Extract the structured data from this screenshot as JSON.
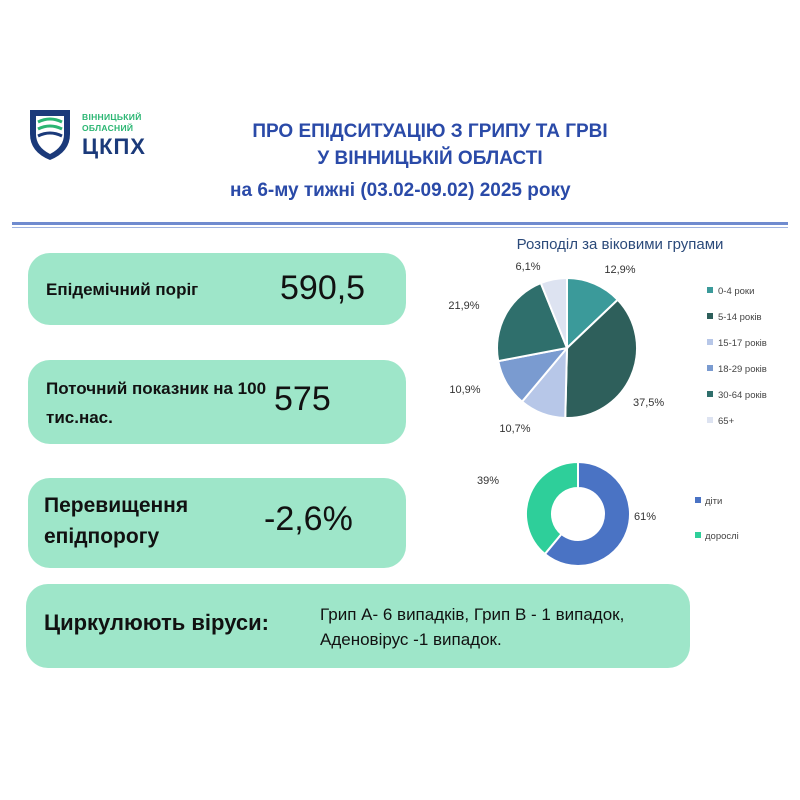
{
  "logo": {
    "line1": "ВІННИЦЬКИЙ",
    "line2": "ОБЛАСНИЙ",
    "main": "ЦКПХ"
  },
  "header": {
    "title_line1": "ПРО ЕПІДСИТУАЦІЮ З ГРИПУ ТА ГРВІ",
    "title_line2": "У ВІННИЦЬКІЙ ОБЛАСТІ",
    "subtitle": "на 6-му тижні (03.02-09.02) 2025 року"
  },
  "cards": {
    "threshold": {
      "label": "Епідемічний поріг",
      "value": "590,5"
    },
    "current": {
      "label": "Поточний показник на 100 тис.нас.",
      "value": "575"
    },
    "excess": {
      "label": "Перевищення епідпорогу",
      "value": "-2,6%"
    },
    "viruses": {
      "label": "Циркулюють віруси:",
      "value": "Грип А- 6 випадків, Грип В - 1 випадок, Аденовірус -1 випадок."
    }
  },
  "colors": {
    "accent": "#2a4aa8",
    "card": "#9ee6c9",
    "logo_green": "#2bb673"
  },
  "chart_data": [
    {
      "type": "pie",
      "title": "Розподіл за віковими групами",
      "categories": [
        "0-4 роки",
        "5-14 років",
        "15-17 років",
        "18-29 років",
        "30-64 років",
        "65+"
      ],
      "values": [
        12.9,
        37.5,
        10.7,
        10.9,
        21.9,
        6.1
      ],
      "labels": [
        "12,9%",
        "37,5%",
        "10,7%",
        "10,9%",
        "21,9%",
        "6,1%"
      ],
      "colors": [
        "#3b9a9a",
        "#2e5f5b",
        "#b7c7e8",
        "#7a9bd0",
        "#2f6f6c",
        "#dde3f1"
      ],
      "legend": "right"
    },
    {
      "type": "pie",
      "title": "",
      "categories": [
        "діти",
        "дорослі"
      ],
      "values": [
        61,
        39
      ],
      "labels": [
        "61%",
        "39%"
      ],
      "colors": [
        "#4a73c4",
        "#2ecf9a"
      ],
      "legend": "right"
    }
  ]
}
